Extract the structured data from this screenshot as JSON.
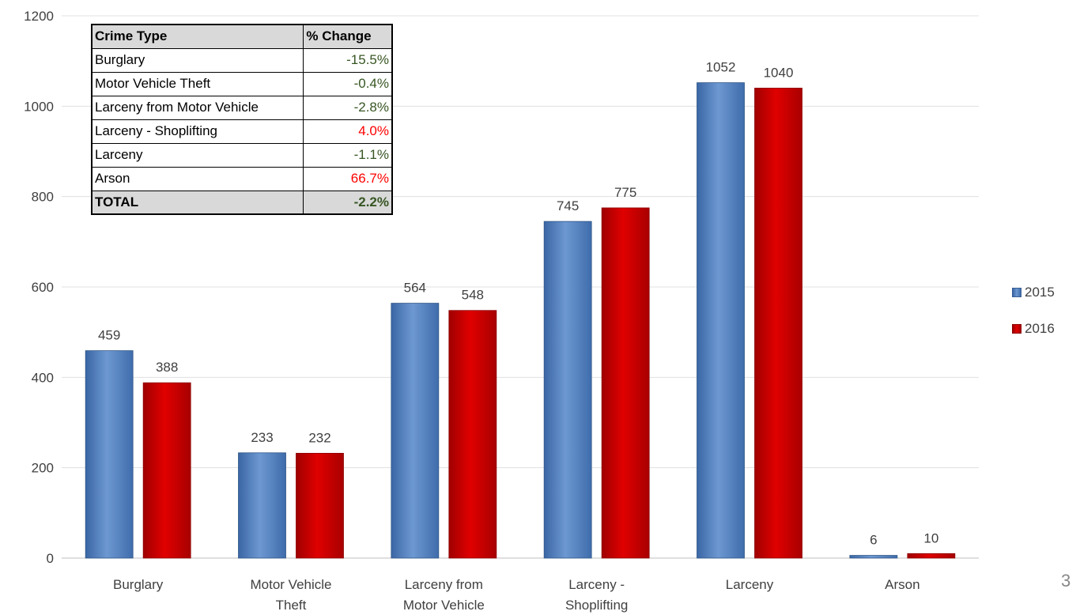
{
  "chart_data": {
    "type": "bar",
    "categories": [
      [
        "Burglary"
      ],
      [
        "Motor Vehicle",
        "Theft"
      ],
      [
        "Larceny from",
        "Motor Vehicle"
      ],
      [
        "Larceny -",
        "Shoplifting"
      ],
      [
        "Larceny"
      ],
      [
        "Arson"
      ]
    ],
    "series": [
      {
        "name": "2015",
        "color": "#4f81bd",
        "values": [
          459,
          233,
          564,
          745,
          1052,
          6
        ]
      },
      {
        "name": "2016",
        "color": "#c00000",
        "values": [
          388,
          232,
          548,
          775,
          1040,
          10
        ]
      }
    ],
    "ylim": [
      0,
      1200
    ],
    "yticks": [
      0,
      200,
      400,
      600,
      800,
      1000,
      1200
    ],
    "grid": true,
    "legend": "right"
  },
  "table": {
    "headers": [
      "Crime Type",
      "% Change"
    ],
    "rows": [
      {
        "type": "Burglary",
        "change": "-15.5%",
        "color": "#375623"
      },
      {
        "type": "Motor Vehicle Theft",
        "change": "-0.4%",
        "color": "#375623"
      },
      {
        "type": "Larceny from Motor Vehicle",
        "change": "-2.8%",
        "color": "#375623"
      },
      {
        "type": "Larceny - Shoplifting",
        "change": "4.0%",
        "color": "#ff0000"
      },
      {
        "type": "Larceny",
        "change": "-1.1%",
        "color": "#375623"
      },
      {
        "type": "Arson",
        "change": "66.7%",
        "color": "#ff0000"
      }
    ],
    "total": {
      "type": "TOTAL",
      "change": "-2.2%",
      "color": "#375623"
    }
  },
  "page_number": "3"
}
